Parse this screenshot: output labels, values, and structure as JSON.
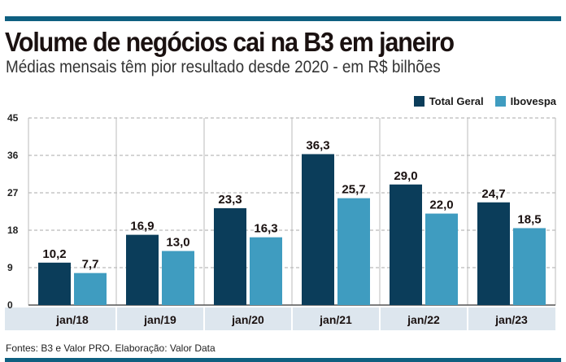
{
  "title": "Volume de negócios cai na B3 em janeiro",
  "subtitle": "Médias mensais têm pior resultado desde 2020 - em R$ bilhões",
  "footer": "Fontes: B3 e Valor PRO. Elaboração: Valor Data",
  "colors": {
    "total": "#0b3d5a",
    "ibovespa": "#3f9cc0",
    "accent": "#0e5f80",
    "band": "#dde6ee"
  },
  "chart_data": {
    "type": "bar",
    "title": "Volume de negócios cai na B3 em janeiro",
    "categories": [
      "jan/18",
      "jan/19",
      "jan/20",
      "jan/21",
      "jan/22",
      "jan/23"
    ],
    "series": [
      {
        "name": "Total Geral",
        "values": [
          10.2,
          16.9,
          23.3,
          36.3,
          29.0,
          24.7
        ],
        "labels": [
          "10,2",
          "16,9",
          "23,3",
          "36,3",
          "29,0",
          "24,7"
        ]
      },
      {
        "name": "Ibovespa",
        "values": [
          7.7,
          13.0,
          16.3,
          25.7,
          22.0,
          18.5
        ],
        "labels": [
          "7,7",
          "13,0",
          "16,3",
          "25,7",
          "22,0",
          "18,5"
        ]
      }
    ],
    "yticks": [
      "0",
      "9",
      "18",
      "27",
      "36",
      "45"
    ],
    "ylim": [
      0,
      45
    ],
    "grid": true,
    "legend": "top-right"
  }
}
